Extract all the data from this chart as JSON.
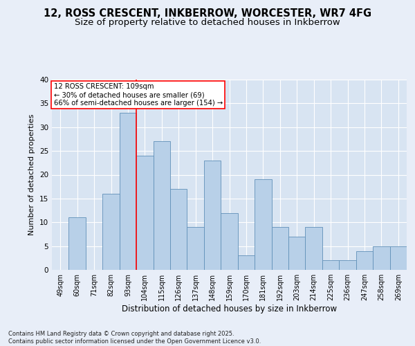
{
  "title1": "12, ROSS CRESCENT, INKBERROW, WORCESTER, WR7 4FG",
  "title2": "Size of property relative to detached houses in Inkberrow",
  "xlabel": "Distribution of detached houses by size in Inkberrow",
  "ylabel": "Number of detached properties",
  "categories": [
    "49sqm",
    "60sqm",
    "71sqm",
    "82sqm",
    "93sqm",
    "104sqm",
    "115sqm",
    "126sqm",
    "137sqm",
    "148sqm",
    "159sqm",
    "170sqm",
    "181sqm",
    "192sqm",
    "203sqm",
    "214sqm",
    "225sqm",
    "236sqm",
    "247sqm",
    "258sqm",
    "269sqm"
  ],
  "values": [
    0,
    11,
    0,
    16,
    33,
    24,
    27,
    17,
    9,
    23,
    12,
    3,
    19,
    9,
    7,
    9,
    2,
    2,
    4,
    5,
    5
  ],
  "bar_color": "#b8d0e8",
  "bar_edge_color": "#6090b8",
  "vline_index": 4.5,
  "vline_color": "red",
  "annotation_text": "12 ROSS CRESCENT: 109sqm\n← 30% of detached houses are smaller (69)\n66% of semi-detached houses are larger (154) →",
  "annotation_box_color": "white",
  "annotation_box_edge": "red",
  "ylim": [
    0,
    40
  ],
  "yticks": [
    0,
    5,
    10,
    15,
    20,
    25,
    30,
    35,
    40
  ],
  "footnote": "Contains HM Land Registry data © Crown copyright and database right 2025.\nContains public sector information licensed under the Open Government Licence v3.0.",
  "bg_color": "#e8eef8",
  "plot_bg_color": "#d8e4f2",
  "title_fontsize": 10.5,
  "subtitle_fontsize": 9.5,
  "bar_linewidth": 0.6,
  "ylabel_fontsize": 8,
  "xlabel_fontsize": 8.5,
  "tick_fontsize": 7,
  "ytick_fontsize": 7.5,
  "annot_fontsize": 7.2,
  "footnote_fontsize": 6
}
